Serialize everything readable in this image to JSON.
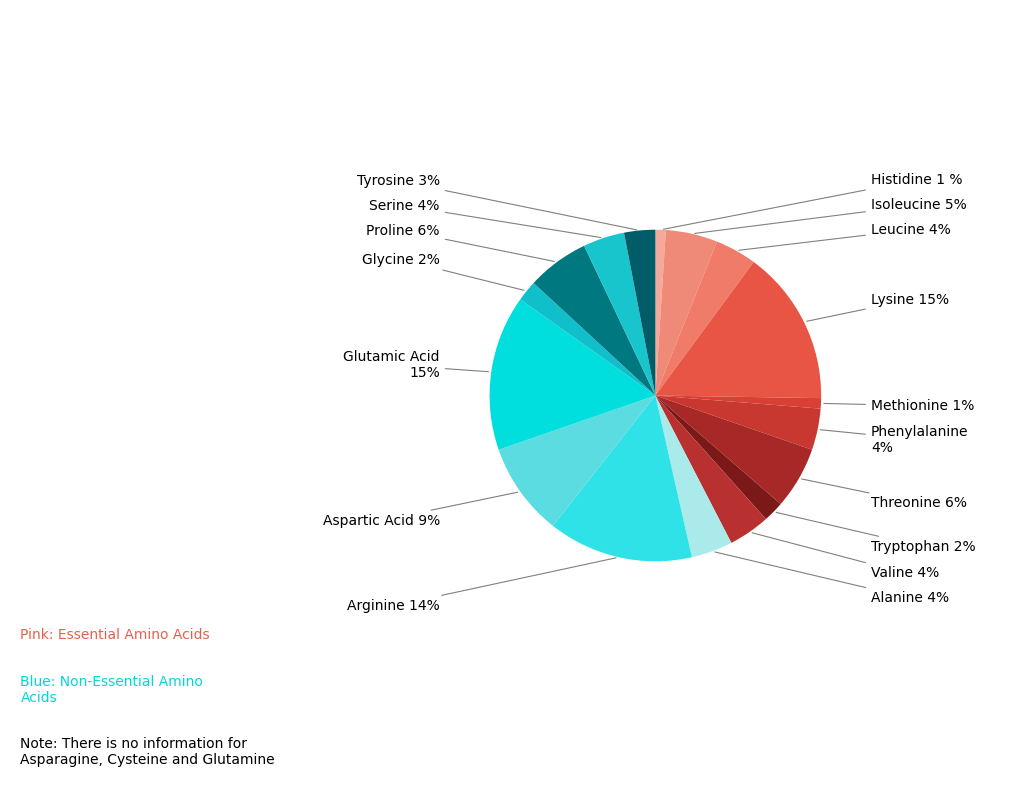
{
  "chart_data": {
    "type": "pie",
    "categories": [
      "Histidine 1 %",
      "Isoleucine 5%",
      "Leucine 4%",
      "Lysine 15%",
      "Methionine 1%",
      "Phenylalanine\n4%",
      "Threonine 6%",
      "Tryptophan 2%",
      "Valine 4%",
      "Alanine 4%",
      "Arginine 14%",
      "Aspartic Acid 9%",
      "Glutamic Acid\n15%",
      "Glycine 2%",
      "Proline 6%",
      "Serine 4%",
      "Tyrosine 3%"
    ],
    "values": [
      1,
      5,
      4,
      15,
      1,
      4,
      6,
      2,
      4,
      4,
      14,
      9,
      15,
      2,
      6,
      4,
      3
    ],
    "colors": [
      "#F5A99A",
      "#F08A78",
      "#EF7B68",
      "#E85545",
      "#D94035",
      "#C83830",
      "#A82828",
      "#7B1818",
      "#B83030",
      "#AAEAEA",
      "#2EE2E8",
      "#5ADCE0",
      "#00DEDE",
      "#10BFCA",
      "#007880",
      "#18C5CC",
      "#005D68"
    ],
    "annotations": [
      {
        "text": "Pink: Essential Amino Acids",
        "color": "#E8604C"
      },
      {
        "text": "Blue: Non-Essential Amino\nAcids",
        "color": "#00D8D8"
      },
      {
        "text": "Note: There is no information for\nAsparagine, Cysteine and Glutamine"
      }
    ]
  }
}
